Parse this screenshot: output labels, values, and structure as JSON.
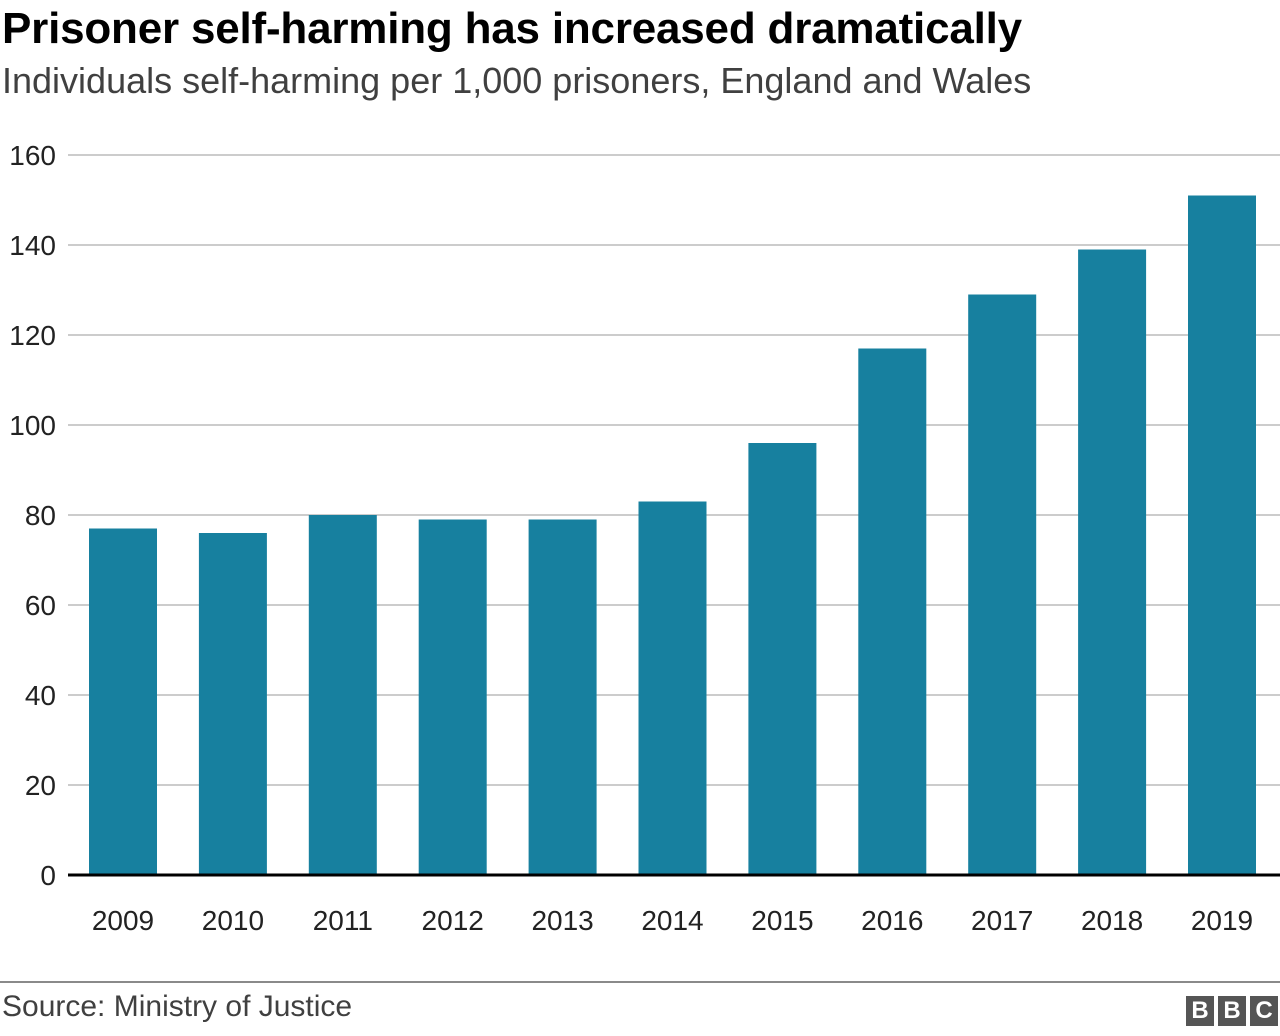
{
  "header": {
    "title": "Prisoner self-harming has increased dramatically",
    "subtitle": "Individuals self-harming per 1,000 prisoners, England and Wales"
  },
  "footer": {
    "source": "Source: Ministry of Justice",
    "logo_letters": [
      "B",
      "B",
      "C"
    ]
  },
  "colors": {
    "bar": "#17809f",
    "grid": "#cccccc",
    "axis": "#000000"
  },
  "chart_data": {
    "type": "bar",
    "title": "Prisoner self-harming has increased dramatically",
    "subtitle": "Individuals self-harming per 1,000 prisoners, England and Wales",
    "xlabel": "",
    "ylabel": "",
    "categories": [
      "2009",
      "2010",
      "2011",
      "2012",
      "2013",
      "2014",
      "2015",
      "2016",
      "2017",
      "2018",
      "2019"
    ],
    "values": [
      77,
      76,
      80,
      79,
      79,
      83,
      96,
      117,
      129,
      139,
      151
    ],
    "ylim": [
      0,
      160
    ],
    "yticks": [
      0,
      20,
      40,
      60,
      80,
      100,
      120,
      140,
      160
    ],
    "grid": true,
    "legend": "none"
  }
}
